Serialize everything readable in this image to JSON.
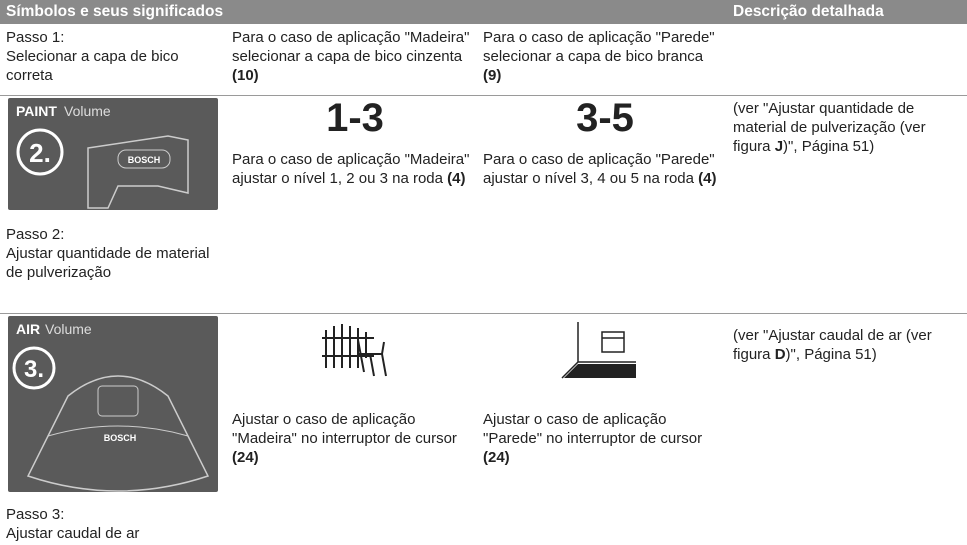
{
  "header": {
    "title": "Símbolos e seus significados",
    "detail": "Descrição detalhada"
  },
  "rows": [
    {
      "step": {
        "label": "Passo 1:",
        "text": "Selecionar a capa de bico correta"
      },
      "cols": [
        {
          "text": "Para o caso de aplicação \"Madeira\" selecionar a capa de bico cinzenta",
          "ref": "(10)"
        },
        {
          "text": "Para o caso de aplicação \"Parede\" selecionar a capa de bico branca",
          "ref": "(9)"
        }
      ]
    },
    {
      "image": {
        "brand": "PAINT",
        "word": "Volume",
        "number": "2.",
        "logo": "BOSCH"
      },
      "step": {
        "label": "Passo 2:",
        "text": "Ajustar quantidade de material de pulverização"
      },
      "cols": [
        {
          "level": "1-3",
          "text": "Para o caso de aplicação \"Madeira\" ajustar o nível 1, 2 ou 3 na roda",
          "ref": "(4)"
        },
        {
          "level": "3-5",
          "text": "Para o caso de aplicação \"Parede\" ajustar o nível 3, 4 ou 5 na roda",
          "ref": "(4)"
        }
      ],
      "detail": {
        "before": "(ver \"Ajustar quantidade de material de pulverização (ver figura ",
        "bold": "J",
        "after": ")\", Página 51)"
      }
    },
    {
      "image": {
        "brand": "AIR",
        "word": "Volume",
        "number": "3.",
        "logo": "BOSCH"
      },
      "step": {
        "label": "Passo 3:",
        "text": "Ajustar caudal de ar"
      },
      "cols": [
        {
          "text": "Ajustar o caso de aplicação \"Madeira\" no interruptor de cursor",
          "ref": "(24)"
        },
        {
          "text": "Ajustar o caso de aplicação \"Parede\" no interruptor de cursor",
          "ref": "(24)"
        }
      ],
      "detail": {
        "before": "(ver \"Ajustar caudal de ar (ver figura ",
        "bold": "D",
        "after": ")\", Página 51)"
      }
    }
  ]
}
